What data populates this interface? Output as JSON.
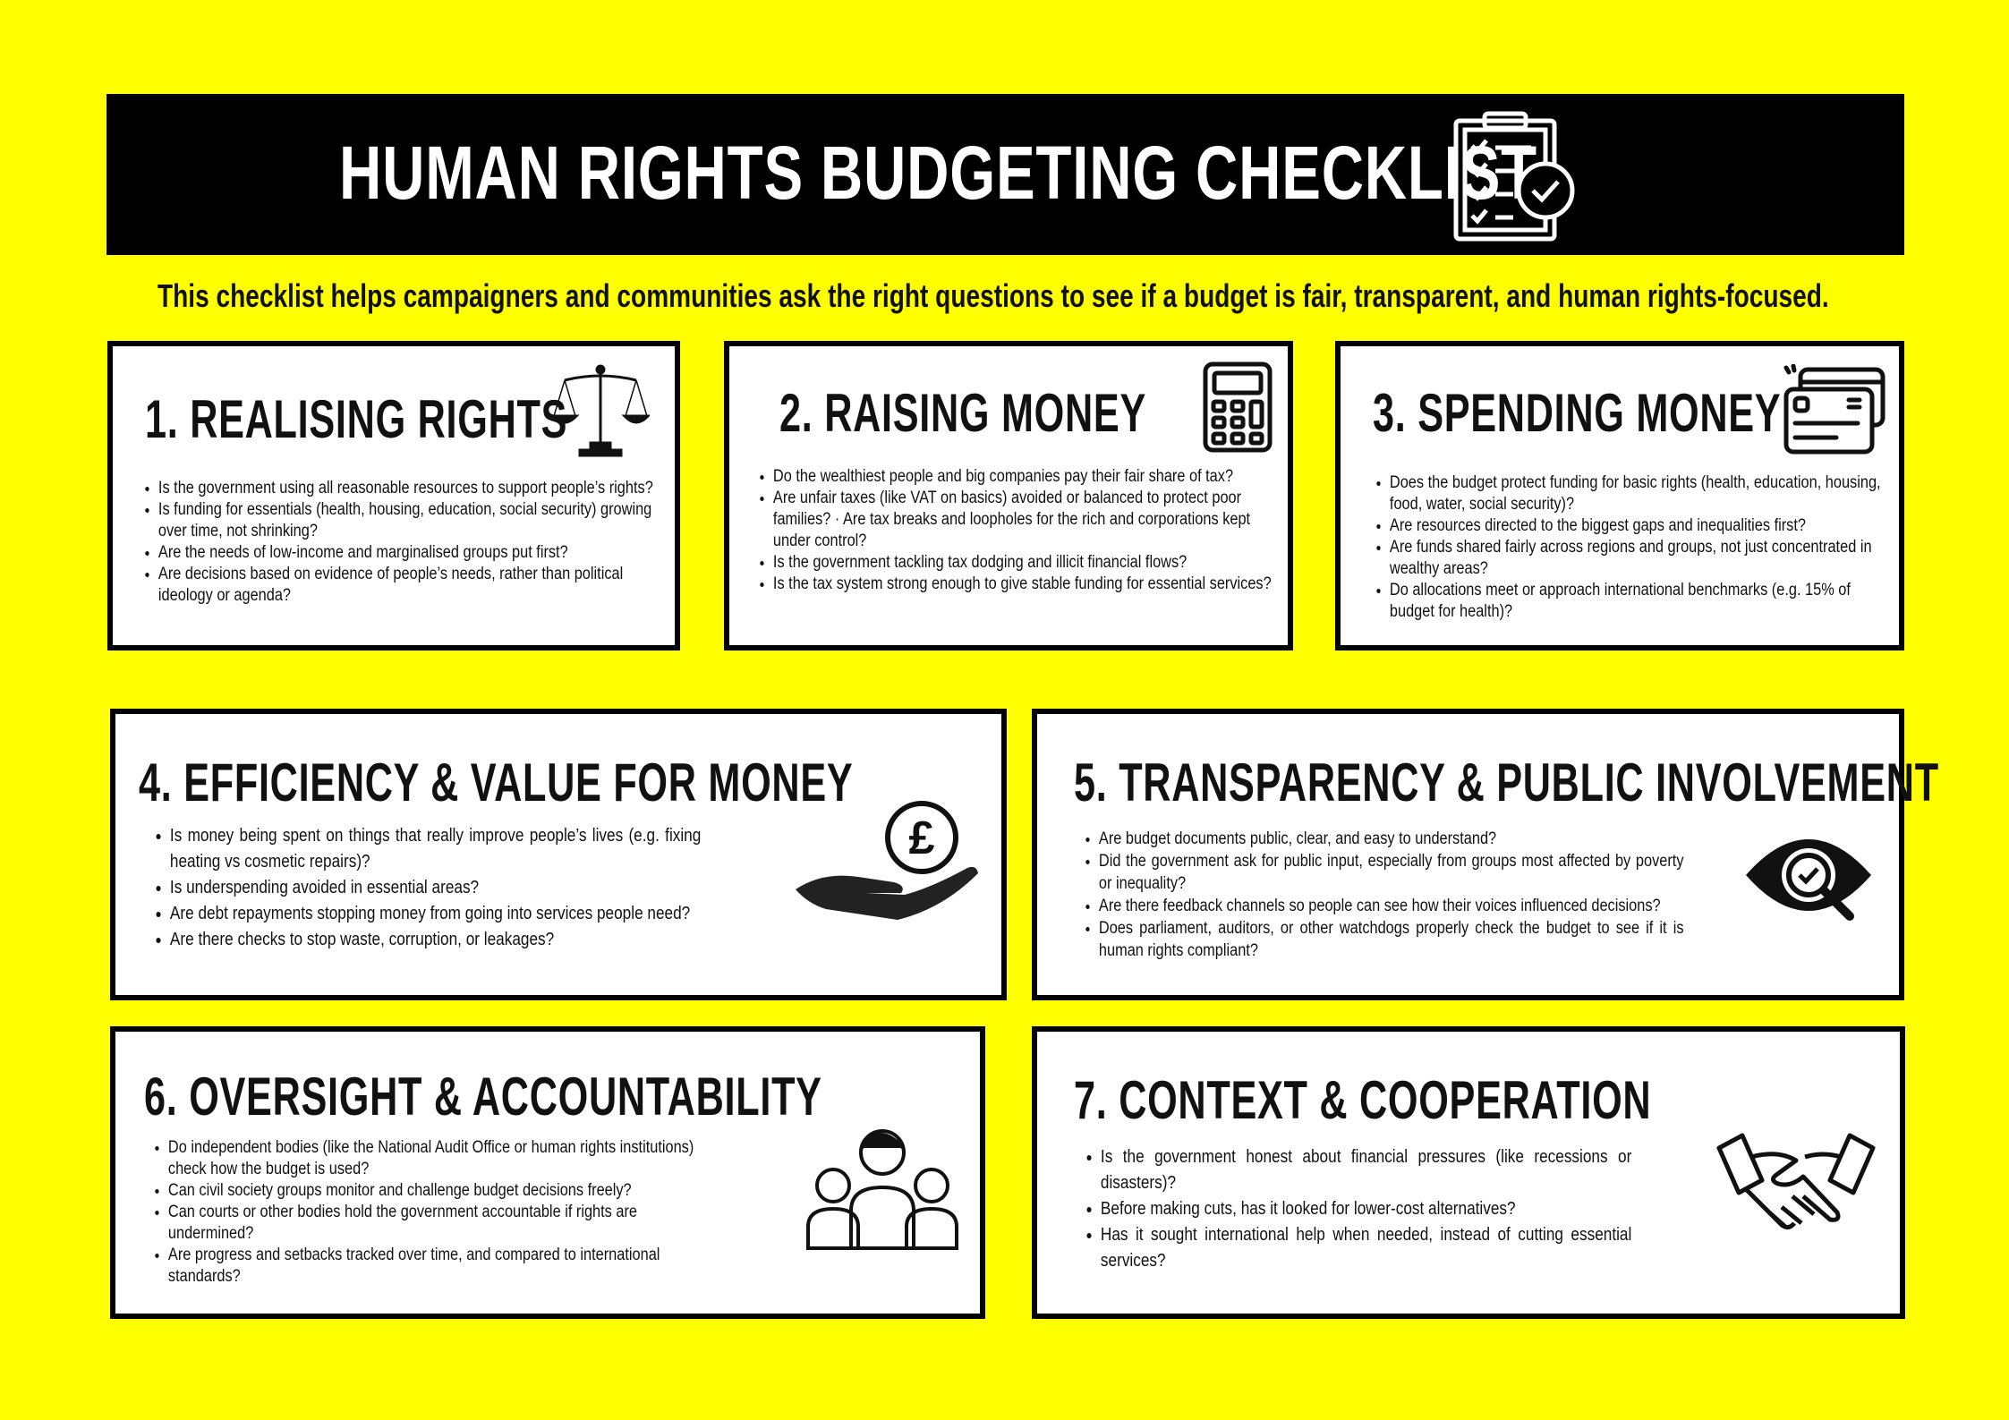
{
  "header": {
    "title": "HUMAN RIGHTS BUDGETING CHECKLIST",
    "icon": "clipboard-checklist-icon"
  },
  "subtitle": "This checklist helps campaigners and communities ask the right questions to see if a budget is fair, transparent, and human rights-focused.",
  "sections": [
    {
      "title": "1. REALISING RIGHTS",
      "icon": "scales-of-justice-icon",
      "items": [
        "Is the government using all reasonable resources to support people’s rights?",
        "Is funding for essentials (health, housing, education, social security) growing over time, not shrinking?",
        "Are the needs of low-income and marginalised groups put first?",
        " Are decisions based on evidence of people’s needs, rather than political ideology or agenda?"
      ]
    },
    {
      "title": "2. RAISING MONEY",
      "icon": "calculator-icon",
      "items": [
        "Do the wealthiest people and big companies pay their fair share of tax?",
        "Are unfair taxes (like VAT on basics) avoided or balanced to protect poor families? · Are tax breaks and loopholes for the rich and corporations kept under control?",
        "Is the government tackling tax dodging and illicit financial flows?",
        " Is the tax system strong enough to give stable funding for essential services?"
      ]
    },
    {
      "title": "3. SPENDING MONEY",
      "icon": "credit-cards-icon",
      "items": [
        "Does the budget protect funding for basic rights (health, education, housing, food, water, social security)?",
        "Are resources directed to the biggest gaps and inequalities first?",
        "Are funds shared fairly across regions and groups, not just concentrated in wealthy areas?",
        "Do allocations meet or approach international benchmarks (e.g. 15% of budget for health)?"
      ]
    },
    {
      "title": "4. EFFICIENCY & VALUE FOR MONEY",
      "icon": "hand-with-pound-coin-icon",
      "items": [
        "Is money being spent on things that really improve people’s lives (e.g. fixing heating vs cosmetic repairs)?",
        "Is underspending avoided in essential areas?",
        "Are debt repayments stopping money from going into services people need?",
        "Are there checks to stop waste, corruption, or leakages?"
      ]
    },
    {
      "title": "5. TRANSPARENCY & PUBLIC INVOLVEMENT",
      "icon": "eye-magnifier-check-icon",
      "items": [
        "Are budget documents public, clear, and easy to understand?",
        "Did the government ask for public input, especially from groups most affected by poverty or inequality?",
        "Are there feedback channels so people can see how their voices influenced decisions?",
        "Does parliament, auditors, or other watchdogs properly check the budget to see if it is human rights compliant?"
      ]
    },
    {
      "title": "6. OVERSIGHT & ACCOUNTABILITY",
      "icon": "people-group-icon",
      "items": [
        "Do independent bodies (like the National Audit Office or human rights institutions) check how the budget is used?",
        "Can civil society groups monitor and challenge budget decisions freely?",
        "Can courts or other bodies hold the government accountable if rights are undermined?",
        "Are progress and setbacks tracked over time, and compared to international standards?"
      ]
    },
    {
      "title": "7. CONTEXT & COOPERATION",
      "icon": "handshake-icon",
      "items": [
        "Is the government honest about financial pressures (like recessions or disasters)?",
        "Before making cuts, has it looked for lower-cost alternatives?",
        "Has it sought international help when needed, instead of cutting essential services?"
      ]
    }
  ]
}
